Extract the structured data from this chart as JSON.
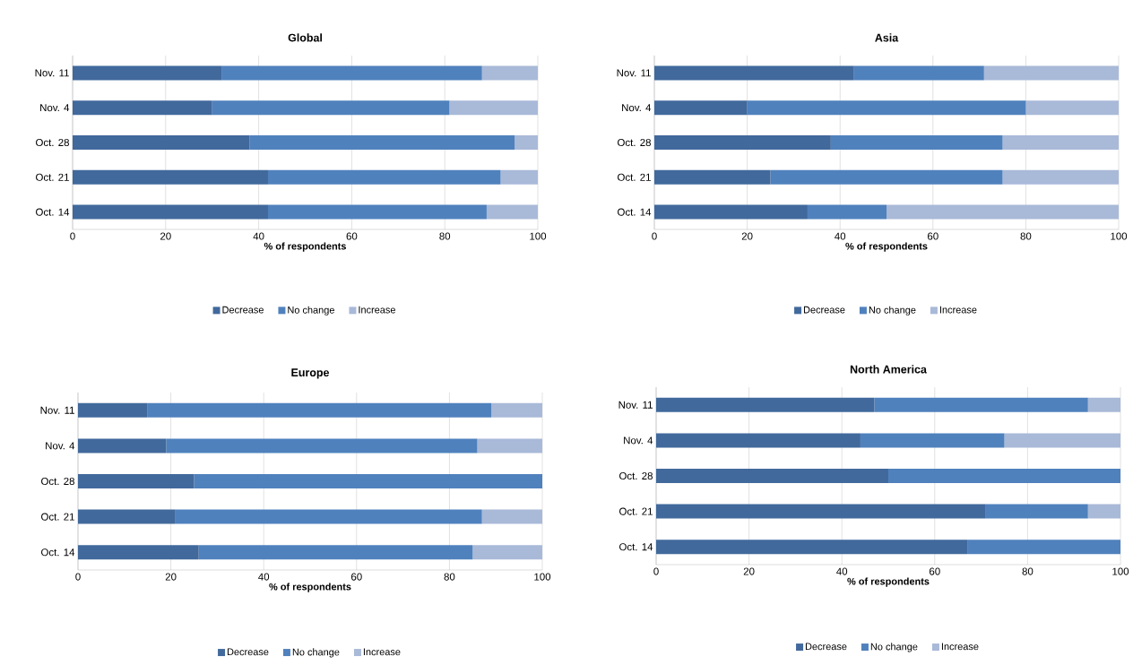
{
  "chart_data": [
    {
      "type": "bar",
      "orientation": "horizontal",
      "stacked": true,
      "title": "Global",
      "xlabel": "% of respondents",
      "categories": [
        "Nov. 11",
        "Nov. 4",
        "Oct. 28",
        "Oct. 21",
        "Oct. 14"
      ],
      "xlim": [
        0,
        100
      ],
      "xticks": [
        0,
        20,
        40,
        60,
        80,
        100
      ],
      "grid": "x",
      "legend": "bottom",
      "series": [
        {
          "name": "Decrease",
          "color": "#41699c",
          "values": [
            32,
            30,
            38,
            42,
            42
          ]
        },
        {
          "name": "No change",
          "color": "#4f81bd",
          "values": [
            56,
            51,
            57,
            50,
            47
          ]
        },
        {
          "name": "Increase",
          "color": "#a9b9d8",
          "values": [
            12,
            19,
            5,
            8,
            11
          ]
        }
      ]
    },
    {
      "type": "bar",
      "orientation": "horizontal",
      "stacked": true,
      "title": "Asia",
      "xlabel": "% of respondents",
      "categories": [
        "Nov. 11",
        "Nov. 4",
        "Oct. 28",
        "Oct. 21",
        "Oct. 14"
      ],
      "xlim": [
        0,
        100
      ],
      "xticks": [
        0,
        20,
        40,
        60,
        80,
        100
      ],
      "grid": "x",
      "legend": "bottom",
      "series": [
        {
          "name": "Decrease",
          "color": "#41699c",
          "values": [
            43,
            20,
            38,
            25,
            33
          ]
        },
        {
          "name": "No change",
          "color": "#4f81bd",
          "values": [
            28,
            60,
            37,
            50,
            17
          ]
        },
        {
          "name": "Increase",
          "color": "#a9b9d8",
          "values": [
            29,
            20,
            25,
            25,
            50
          ]
        }
      ]
    },
    {
      "type": "bar",
      "orientation": "horizontal",
      "stacked": true,
      "title": "Europe",
      "xlabel": "% of respondents",
      "categories": [
        "Nov. 11",
        "Nov. 4",
        "Oct. 28",
        "Oct. 21",
        "Oct. 14"
      ],
      "xlim": [
        0,
        100
      ],
      "xticks": [
        0,
        20,
        40,
        60,
        80,
        100
      ],
      "grid": "x",
      "legend": "bottom",
      "series": [
        {
          "name": "Decrease",
          "color": "#41699c",
          "values": [
            15,
            19,
            25,
            21,
            26
          ]
        },
        {
          "name": "No change",
          "color": "#4f81bd",
          "values": [
            74,
            67,
            75,
            66,
            59
          ]
        },
        {
          "name": "Increase",
          "color": "#a9b9d8",
          "values": [
            11,
            14,
            0,
            13,
            15
          ]
        }
      ]
    },
    {
      "type": "bar",
      "orientation": "horizontal",
      "stacked": true,
      "title": "North America",
      "xlabel": "% of respondents",
      "categories": [
        "Nov. 11",
        "Nov. 4",
        "Oct. 28",
        "Oct. 21",
        "Oct. 14"
      ],
      "xlim": [
        0,
        100
      ],
      "xticks": [
        0,
        20,
        40,
        60,
        80,
        100
      ],
      "grid": "x",
      "legend": "bottom",
      "series": [
        {
          "name": "Decrease",
          "color": "#41699c",
          "values": [
            47,
            44,
            50,
            71,
            67
          ]
        },
        {
          "name": "No change",
          "color": "#4f81bd",
          "values": [
            46,
            31,
            50,
            22,
            33
          ]
        },
        {
          "name": "Increase",
          "color": "#a9b9d8",
          "values": [
            7,
            25,
            0,
            7,
            0
          ]
        }
      ]
    }
  ]
}
